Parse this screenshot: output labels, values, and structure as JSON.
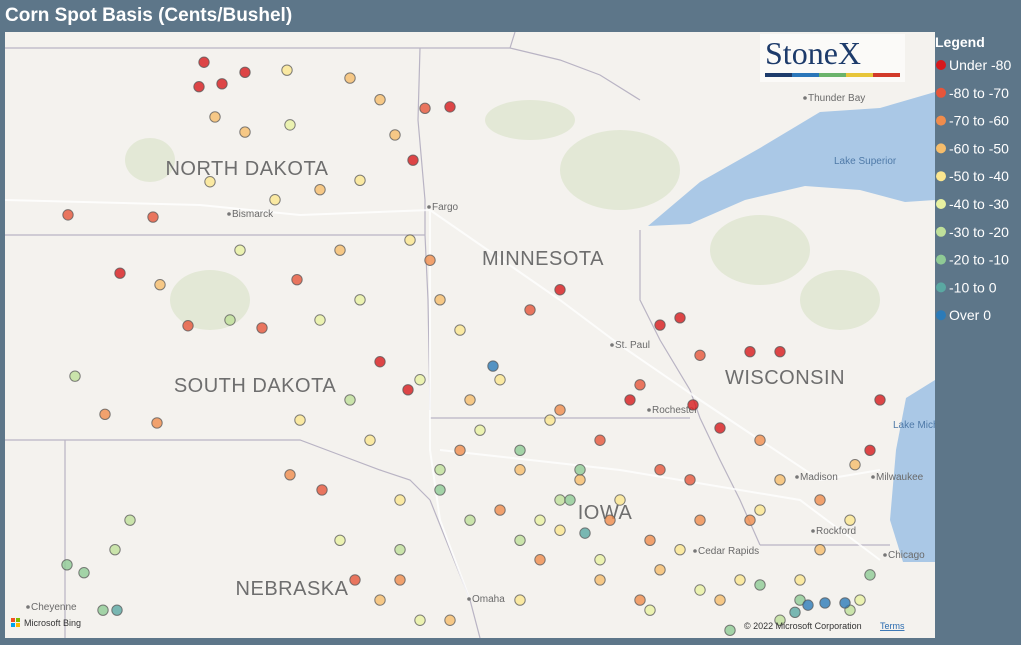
{
  "header": {
    "title": "Corn Spot Basis (Cents/Bushel)"
  },
  "legend": {
    "title": "Legend",
    "bins": [
      {
        "label": "Under -80",
        "color": "#d7191c"
      },
      {
        "label": "-80 to -70",
        "color": "#e6553a"
      },
      {
        "label": "-70 to -60",
        "color": "#f08c4c"
      },
      {
        "label": "-60 to -50",
        "color": "#f6bd6b"
      },
      {
        "label": "-50 to -40",
        "color": "#fbe68f"
      },
      {
        "label": "-40 to -30",
        "color": "#e8f1a1"
      },
      {
        "label": "-30 to -20",
        "color": "#bfe09a"
      },
      {
        "label": "-20 to -10",
        "color": "#8fca95"
      },
      {
        "label": "-10 to 0",
        "color": "#5aa8a2"
      },
      {
        "label": "Over 0",
        "color": "#2c7bb8"
      }
    ]
  },
  "logo": "StoneX",
  "map": {
    "states": [
      "NORTH DAKOTA",
      "SOUTH DAKOTA",
      "MINNESOTA",
      "WISCONSIN",
      "IOWA",
      "NEBRASKA"
    ],
    "cities": [
      "Bismarck",
      "Fargo",
      "Thunder Bay",
      "St. Paul",
      "Rochester",
      "Madison",
      "Milwaukee",
      "Rockford",
      "Chicago",
      "Cedar Rapids",
      "Omaha",
      "Cheyenne"
    ],
    "water": [
      "Lake Superior",
      "Lake Michigan"
    ],
    "points": [
      [
        -101.02,
        48.98,
        0
      ],
      [
        -100.66,
        48.68,
        0
      ],
      [
        -100.2,
        48.84,
        0
      ],
      [
        -101.12,
        48.64,
        0
      ],
      [
        -102.7,
        46.05,
        0
      ],
      [
        -97.5,
        44.82,
        0
      ],
      [
        -96.94,
        44.43,
        0
      ],
      [
        -91.9,
        45.33,
        0
      ],
      [
        -91.5,
        45.43,
        0
      ],
      [
        -90.1,
        44.96,
        0
      ],
      [
        -89.5,
        44.96,
        0
      ],
      [
        -91.24,
        44.22,
        0
      ],
      [
        -90.7,
        43.9,
        0
      ],
      [
        -87.5,
        44.29,
        0
      ],
      [
        -87.7,
        43.59,
        0
      ],
      [
        -92.5,
        44.29,
        0
      ],
      [
        -93.9,
        45.82,
        0
      ],
      [
        -96.84,
        47.62,
        0
      ],
      [
        -96.1,
        48.36,
        0
      ],
      [
        -103.74,
        46.86,
        1
      ],
      [
        -102.04,
        46.83,
        1
      ],
      [
        -99.16,
        45.96,
        1
      ],
      [
        -101.34,
        45.32,
        1
      ],
      [
        -99.86,
        45.29,
        1
      ],
      [
        -98.66,
        43.04,
        1
      ],
      [
        -94.5,
        45.54,
        1
      ],
      [
        -91.1,
        44.91,
        1
      ],
      [
        -92.3,
        44.5,
        1
      ],
      [
        -93.1,
        43.73,
        1
      ],
      [
        -91.9,
        43.32,
        1
      ],
      [
        -91.3,
        43.18,
        1
      ],
      [
        -98.0,
        41.79,
        1
      ],
      [
        -96.6,
        48.34,
        1
      ],
      [
        -103.0,
        44.09,
        2
      ],
      [
        -101.96,
        43.97,
        2
      ],
      [
        -99.3,
        43.25,
        2
      ],
      [
        -96.5,
        46.23,
        2
      ],
      [
        -95.9,
        43.59,
        2
      ],
      [
        -95.1,
        42.76,
        2
      ],
      [
        -94.3,
        42.07,
        2
      ],
      [
        -92.9,
        42.62,
        2
      ],
      [
        -92.1,
        42.34,
        2
      ],
      [
        -91.1,
        42.62,
        2
      ],
      [
        -90.1,
        42.62,
        2
      ],
      [
        -88.7,
        42.9,
        2
      ],
      [
        -89.9,
        43.73,
        2
      ],
      [
        -93.9,
        44.15,
        2
      ],
      [
        -97.1,
        41.79,
        2
      ],
      [
        -92.3,
        41.51,
        2
      ],
      [
        -101.9,
        45.89,
        3
      ],
      [
        -100.8,
        48.22,
        3
      ],
      [
        -100.2,
        48.01,
        3
      ],
      [
        -98.1,
        48.76,
        3
      ],
      [
        -97.5,
        48.46,
        3
      ],
      [
        -97.2,
        47.97,
        3
      ],
      [
        -98.7,
        47.21,
        3
      ],
      [
        -98.3,
        46.37,
        3
      ],
      [
        -96.3,
        45.68,
        3
      ],
      [
        -95.7,
        44.29,
        3
      ],
      [
        -94.7,
        43.32,
        3
      ],
      [
        -93.5,
        43.18,
        3
      ],
      [
        -93.1,
        41.79,
        3
      ],
      [
        -91.9,
        41.93,
        3
      ],
      [
        -90.7,
        41.51,
        3
      ],
      [
        -97.5,
        41.51,
        3
      ],
      [
        -96.1,
        41.23,
        3
      ],
      [
        -88.7,
        42.21,
        3
      ],
      [
        -88.0,
        43.39,
        3
      ],
      [
        -89.5,
        43.18,
        3
      ],
      [
        -99.36,
        48.87,
        4
      ],
      [
        -100.9,
        47.32,
        4
      ],
      [
        -99.6,
        47.07,
        4
      ],
      [
        -97.9,
        47.34,
        4
      ],
      [
        -96.9,
        46.51,
        4
      ],
      [
        -95.9,
        45.26,
        4
      ],
      [
        -95.1,
        44.57,
        4
      ],
      [
        -94.1,
        44.01,
        4
      ],
      [
        -92.7,
        42.9,
        4
      ],
      [
        -91.5,
        42.21,
        4
      ],
      [
        -90.3,
        41.79,
        4
      ],
      [
        -89.1,
        41.79,
        4
      ],
      [
        -97.1,
        42.9,
        4
      ],
      [
        -97.7,
        43.73,
        4
      ],
      [
        -99.1,
        44.01,
        4
      ],
      [
        -94.7,
        41.51,
        4
      ],
      [
        -88.1,
        42.62,
        4
      ],
      [
        -89.9,
        42.76,
        4
      ],
      [
        -93.9,
        42.48,
        4
      ],
      [
        -99.3,
        48.11,
        5
      ],
      [
        -100.3,
        46.37,
        5
      ],
      [
        -98.7,
        45.4,
        5
      ],
      [
        -97.9,
        45.68,
        5
      ],
      [
        -96.7,
        44.57,
        5
      ],
      [
        -95.5,
        43.87,
        5
      ],
      [
        -94.3,
        42.62,
        5
      ],
      [
        -93.1,
        42.07,
        5
      ],
      [
        -91.1,
        41.65,
        5
      ],
      [
        -98.3,
        42.34,
        5
      ],
      [
        -92.1,
        41.37,
        5
      ],
      [
        -87.9,
        41.51,
        5
      ],
      [
        -96.7,
        41.23,
        5
      ],
      [
        -100.5,
        45.4,
        6
      ],
      [
        -103.6,
        44.62,
        6
      ],
      [
        -102.5,
        42.62,
        6
      ],
      [
        -102.8,
        42.21,
        6
      ],
      [
        -98.1,
        44.29,
        6
      ],
      [
        -96.3,
        43.32,
        6
      ],
      [
        -95.7,
        42.62,
        6
      ],
      [
        -94.7,
        42.34,
        6
      ],
      [
        -93.9,
        42.9,
        6
      ],
      [
        -89.5,
        41.23,
        6
      ],
      [
        -88.1,
        41.37,
        6
      ],
      [
        -97.1,
        42.21,
        6
      ],
      [
        -103.76,
        42.0,
        7
      ],
      [
        -103.42,
        41.89,
        7
      ],
      [
        -103.04,
        41.37,
        7
      ],
      [
        -96.3,
        43.04,
        7
      ],
      [
        -94.7,
        43.59,
        7
      ],
      [
        -93.7,
        42.9,
        7
      ],
      [
        -93.5,
        43.32,
        7
      ],
      [
        -89.1,
        41.51,
        7
      ],
      [
        -89.9,
        41.72,
        7
      ],
      [
        -87.7,
        41.86,
        7
      ],
      [
        -90.5,
        41.09,
        7
      ],
      [
        -102.76,
        41.37,
        8
      ],
      [
        -89.2,
        41.34,
        8
      ],
      [
        -93.4,
        42.44,
        8
      ],
      [
        -95.24,
        44.76,
        9
      ],
      [
        -88.94,
        41.44,
        9
      ],
      [
        -88.2,
        41.47,
        9
      ],
      [
        -88.6,
        41.47,
        9
      ]
    ]
  },
  "footer": {
    "bing": "Microsoft Bing",
    "copyright": "© 2022 Microsoft Corporation",
    "terms": "Terms"
  }
}
